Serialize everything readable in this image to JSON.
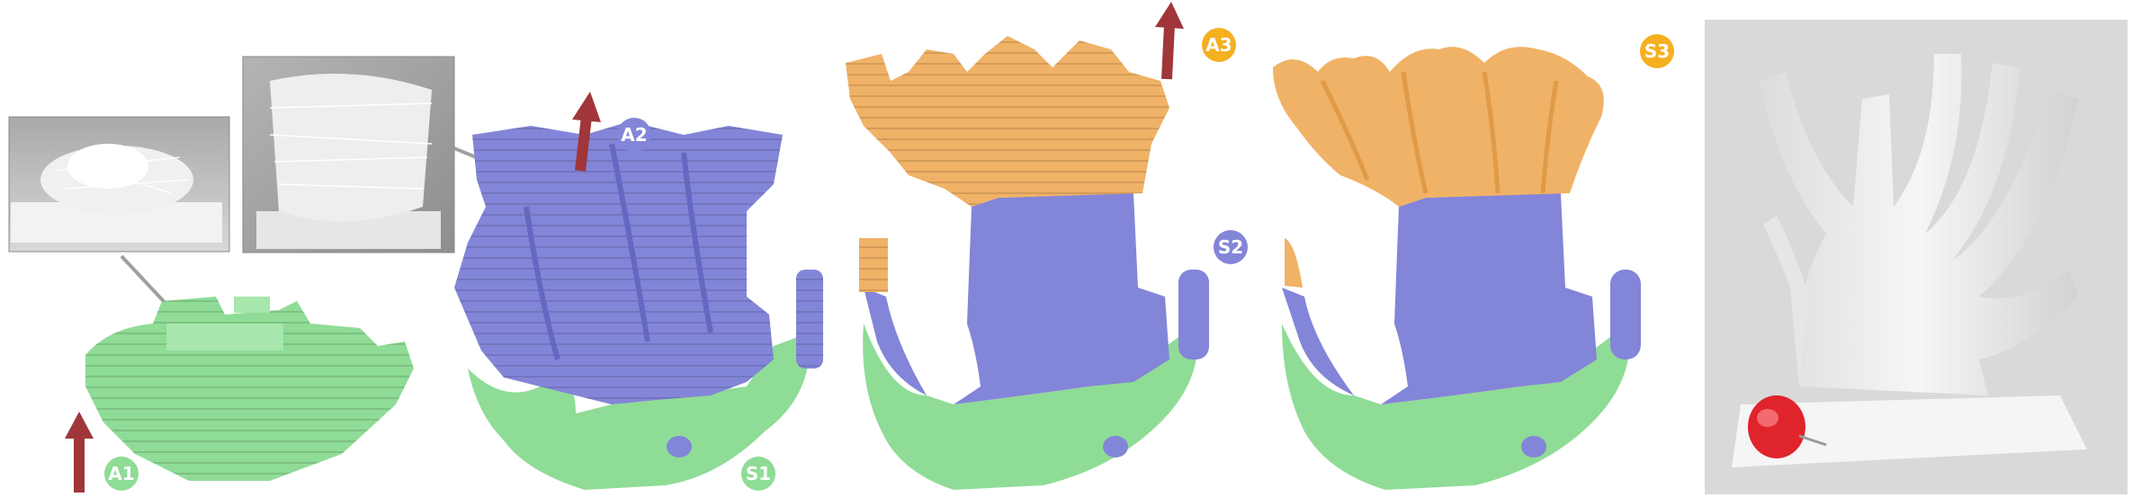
{
  "labels": {
    "a1": "A1",
    "s1": "S1",
    "a2": "A2",
    "s2": "S2",
    "a3": "A3",
    "s3": "S3"
  },
  "colors": {
    "stage1": "#8fdc96",
    "stage2": "#8385d8",
    "stage3": "#f0b266",
    "arrow": "#a0363a",
    "badge1": "#8fdc96",
    "badge2": "#8385d8",
    "badge3": "#f5b020",
    "photo_bg": "#d9d9d9",
    "pin": "#e0242c"
  },
  "icons": {
    "arrow": "up-arrow-icon",
    "pin": "push-pin-icon"
  }
}
